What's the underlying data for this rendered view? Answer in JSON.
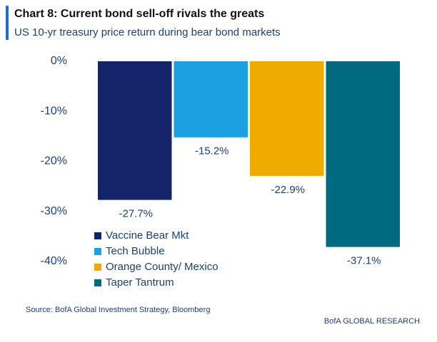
{
  "chart_data": {
    "type": "bar",
    "title": "Chart 8: Current bond sell-off rivals the greats",
    "subtitle": "US 10-yr treasury price return during bear bond markets",
    "source": "Source:  BofA Global Investment Strategy, Bloomberg",
    "footer": "BofA GLOBAL RESEARCH",
    "categories": [
      null
    ],
    "series": [
      {
        "name": "Vaccine Bear Mkt",
        "color": "#14246b",
        "values": [
          -27.7
        ],
        "value_labels": [
          "-27.7%"
        ]
      },
      {
        "name": "Tech Bubble",
        "color": "#1ba1e2",
        "values": [
          -15.2
        ],
        "value_labels": [
          "-15.2%"
        ]
      },
      {
        "name": "Orange County/ Mexico",
        "color": "#f0ab00",
        "values": [
          -22.9
        ],
        "value_labels": [
          "-22.9%"
        ]
      },
      {
        "name": "Taper Tantrum",
        "color": "#006a80",
        "values": [
          -37.1
        ],
        "value_labels": [
          "-37.1%"
        ]
      }
    ],
    "ylim": [
      -40,
      0
    ],
    "yticks": [
      {
        "value": 0,
        "label": "0%"
      },
      {
        "value": -10,
        "label": "-10%"
      },
      {
        "value": -20,
        "label": "-20%"
      },
      {
        "value": -30,
        "label": "-30%"
      },
      {
        "value": -40,
        "label": "-40%"
      }
    ],
    "legend": "lower-left"
  }
}
